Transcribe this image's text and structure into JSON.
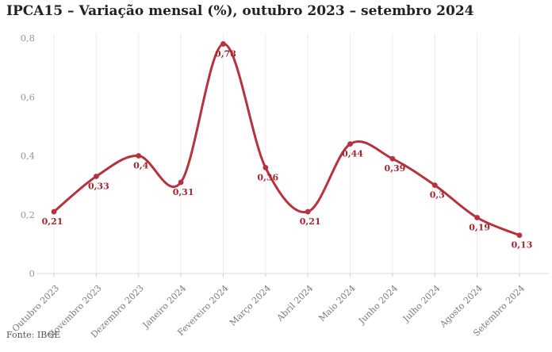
{
  "title": "IPCA15 – Variação mensal (%), outubro 2023 – setembro 2024",
  "source": "Fonte: IBGE",
  "colors": {
    "line": "#b5323e",
    "point": "#b5323e",
    "value_label": "#a12833",
    "grid": "#ececec",
    "axis": "#d9d9d9",
    "tick": "#cccccc",
    "y_tick_label": "#969696",
    "x_tick_label": "#7a7a7a",
    "title_text": "#222222",
    "source_text": "#555555"
  },
  "chart_data": {
    "type": "line",
    "title": "IPCA15 – Variação mensal (%), outubro 2023 – setembro 2024",
    "categories": [
      "Outubro 2023",
      "Novembro 2023",
      "Dezembro 2023",
      "Janeiro 2024",
      "Fevereiro 2024",
      "Março 2024",
      "Abril 2024",
      "Maio 2024",
      "Junho 2024",
      "Julho 2024",
      "Agosto 2024",
      "Setembro 2024"
    ],
    "values": [
      0.21,
      0.33,
      0.4,
      0.31,
      0.78,
      0.36,
      0.21,
      0.44,
      0.39,
      0.3,
      0.19,
      0.13
    ],
    "value_labels": [
      "0,21",
      "0,33",
      "0,4",
      "0,31",
      "0,78",
      "0,36",
      "0,21",
      "0,44",
      "0,39",
      "0,3",
      "0,19",
      "0,13"
    ],
    "xlabel": "",
    "ylabel": "",
    "ylim": [
      0,
      0.8
    ],
    "y_ticks": {
      "values": [
        0,
        0.2,
        0.4,
        0.6,
        0.8
      ],
      "labels": [
        "0",
        "0,2",
        "0,4",
        "0,6",
        "0,8"
      ]
    },
    "grid": "vertical-only",
    "legend": "none",
    "source": "Fonte: IBGE"
  }
}
